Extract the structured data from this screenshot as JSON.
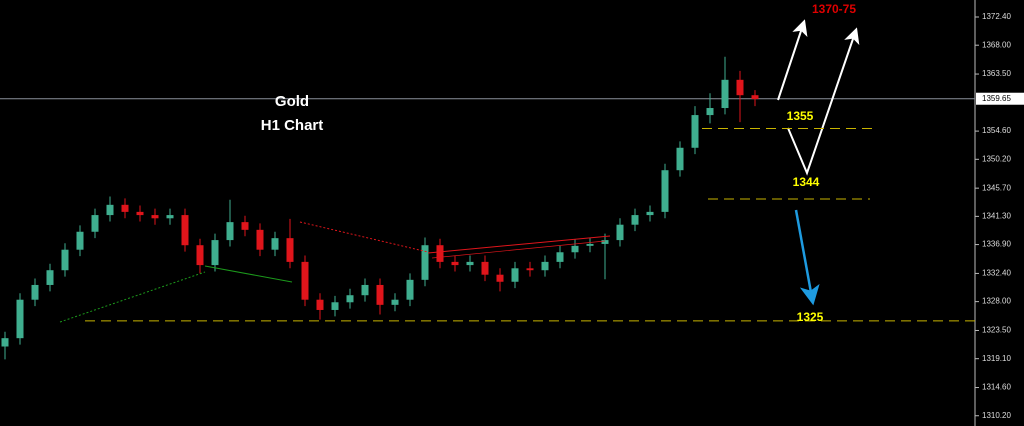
{
  "chart_data": {
    "type": "candlestick",
    "title": "Gold",
    "subtitle": "H1 Chart",
    "up_color": "#3fae8f",
    "down_color": "#e0151b",
    "open": [
      1321.0,
      1322.3,
      1328.3,
      1330.6,
      1332.9,
      1336.1,
      1338.9,
      1341.5,
      1343.1,
      1342.0,
      1341.5,
      1341.0,
      1341.5,
      1336.8,
      1333.7,
      1337.6,
      1340.4,
      1339.2,
      1336.1,
      1337.9,
      1334.2,
      1328.3,
      1326.7,
      1327.9,
      1329.0,
      1330.6,
      1327.5,
      1328.3,
      1331.4,
      1336.8,
      1334.2,
      1333.7,
      1334.2,
      1332.2,
      1331.1,
      1333.2,
      1332.9,
      1334.2,
      1335.7,
      1336.7,
      1337.0,
      1337.6,
      1340.0,
      1341.5,
      1342.0,
      1348.5,
      1352.0,
      1357.1,
      1358.2,
      1362.6,
      1360.2
    ],
    "high": [
      1323.3,
      1329.3,
      1331.6,
      1333.9,
      1337.1,
      1339.9,
      1342.5,
      1344.4,
      1344.1,
      1343.0,
      1342.5,
      1342.5,
      1342.5,
      1337.8,
      1338.6,
      1343.9,
      1341.4,
      1340.2,
      1338.9,
      1340.9,
      1335.2,
      1329.3,
      1328.9,
      1330.0,
      1331.6,
      1331.6,
      1329.3,
      1332.4,
      1338.0,
      1337.8,
      1335.2,
      1335.2,
      1335.2,
      1333.2,
      1334.2,
      1334.2,
      1335.2,
      1336.7,
      1337.7,
      1338.0,
      1338.6,
      1341.0,
      1342.5,
      1343.0,
      1349.5,
      1353.0,
      1358.5,
      1360.5,
      1366.2,
      1364.0,
      1361.0
    ],
    "low": [
      1319.0,
      1321.3,
      1327.3,
      1329.6,
      1331.9,
      1335.1,
      1337.9,
      1340.5,
      1341.0,
      1340.5,
      1340.0,
      1340.0,
      1335.8,
      1332.4,
      1332.7,
      1336.6,
      1338.2,
      1335.1,
      1335.1,
      1333.2,
      1327.3,
      1325.2,
      1325.7,
      1326.9,
      1328.0,
      1326.0,
      1326.5,
      1327.3,
      1330.4,
      1333.2,
      1332.7,
      1332.7,
      1331.2,
      1329.6,
      1330.1,
      1331.9,
      1331.9,
      1333.2,
      1334.7,
      1335.7,
      1331.5,
      1336.6,
      1339.0,
      1340.5,
      1341.0,
      1347.5,
      1351.0,
      1355.8,
      1357.2,
      1356.0,
      1358.5
    ],
    "close": [
      1322.3,
      1328.3,
      1330.6,
      1332.9,
      1336.1,
      1338.9,
      1341.5,
      1343.1,
      1342.0,
      1341.5,
      1341.0,
      1341.5,
      1336.8,
      1333.7,
      1337.6,
      1340.4,
      1339.2,
      1336.1,
      1337.9,
      1334.2,
      1328.3,
      1326.7,
      1327.9,
      1329.0,
      1330.6,
      1327.5,
      1328.3,
      1331.4,
      1336.8,
      1334.2,
      1333.7,
      1334.2,
      1332.2,
      1331.1,
      1333.2,
      1332.9,
      1334.2,
      1335.7,
      1336.7,
      1337.0,
      1337.6,
      1340.0,
      1341.5,
      1342.0,
      1348.5,
      1352.0,
      1357.1,
      1358.2,
      1362.6,
      1360.2,
      1359.6
    ],
    "ylim": [
      1308.6,
      1375.05
    ],
    "yticks": [
      {
        "value": 1372.4,
        "label": "1372.40"
      },
      {
        "value": 1368.0,
        "label": "1368.00"
      },
      {
        "value": 1363.5,
        "label": "1363.50"
      },
      {
        "value": 1354.6,
        "label": "1354.60"
      },
      {
        "value": 1350.2,
        "label": "1350.20"
      },
      {
        "value": 1345.7,
        "label": "1345.70"
      },
      {
        "value": 1341.3,
        "label": "1341.30"
      },
      {
        "value": 1336.9,
        "label": "1336.90"
      },
      {
        "value": 1332.4,
        "label": "1332.40"
      },
      {
        "value": 1328.0,
        "label": "1328.00"
      },
      {
        "value": 1323.5,
        "label": "1323.50"
      },
      {
        "value": 1319.1,
        "label": "1319.10"
      },
      {
        "value": 1314.6,
        "label": "1314.60"
      },
      {
        "value": 1310.2,
        "label": "1310.20"
      }
    ],
    "current_price": {
      "value": 1359.65,
      "label": "1359.65"
    },
    "levels": [
      {
        "value": 1355,
        "label": "1355"
      },
      {
        "value": 1344,
        "label": "1344"
      },
      {
        "value": 1325,
        "label": "1325"
      }
    ],
    "target": "1370-75"
  }
}
